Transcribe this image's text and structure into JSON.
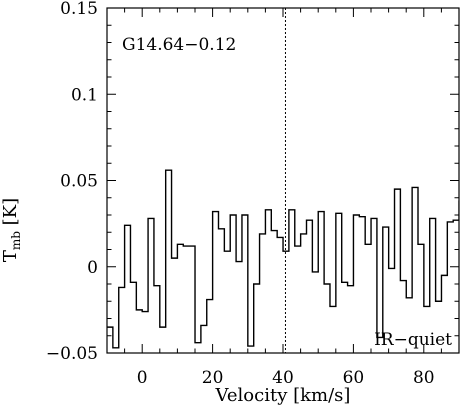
{
  "chart_data": {
    "type": "line",
    "step": true,
    "xlabel": "Velocity [km/s]",
    "ylabel_main": "T",
    "ylabel_sub": "mb",
    "ylabel_unit": " [K]",
    "xlim": [
      -10,
      90
    ],
    "ylim": [
      -0.05,
      0.15
    ],
    "x_ticks": [
      0,
      20,
      40,
      60,
      80
    ],
    "x_tick_labels": [
      "0",
      "20",
      "40",
      "60",
      "80"
    ],
    "y_ticks": [
      -0.05,
      0,
      0.05,
      0.1,
      0.15
    ],
    "y_tick_labels": [
      "−0.05",
      "0",
      "0.05",
      "0.1",
      "0.15"
    ],
    "reference_velocity": 40.7,
    "annotations": {
      "source": "G14.64−0.12",
      "class": "IR−quiet"
    },
    "series": [
      {
        "bin_width": 1.667,
        "x_start": -10.0,
        "values": [
          -0.035,
          -0.047,
          -0.012,
          0.024,
          -0.009,
          -0.025,
          -0.026,
          0.028,
          -0.011,
          -0.035,
          0.056,
          0.005,
          0.013,
          0.012,
          0.012,
          -0.044,
          -0.034,
          -0.019,
          0.032,
          0.022,
          0.009,
          0.03,
          0.003,
          0.03,
          -0.046,
          -0.01,
          0.019,
          0.033,
          0.021,
          0.017,
          0.009,
          0.033,
          0.012,
          0.019,
          0.027,
          -0.003,
          0.032,
          -0.01,
          -0.023,
          0.031,
          -0.009,
          -0.011,
          0.03,
          0.029,
          0.013,
          0.028,
          -0.041,
          0.023,
          -0.001,
          0.045,
          -0.008,
          -0.018,
          0.046,
          0.013,
          -0.023,
          0.028,
          -0.02,
          -0.005,
          0.026,
          0.027,
          0.038,
          0.023
        ]
      }
    ]
  }
}
